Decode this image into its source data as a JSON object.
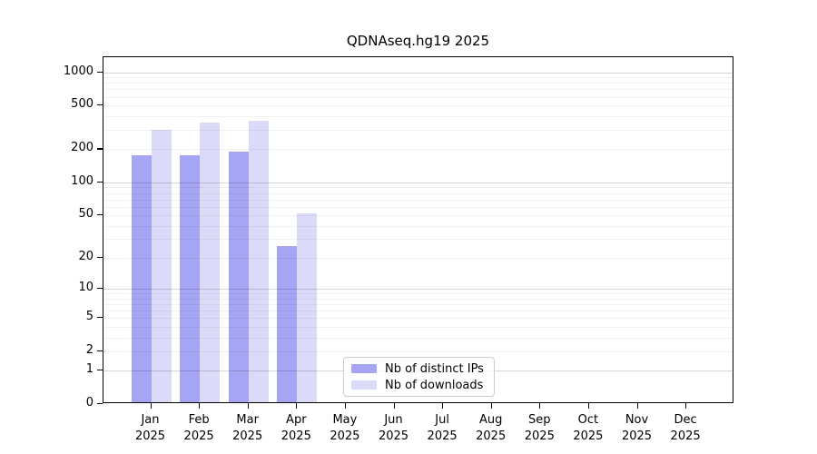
{
  "title": "QDNAseq.hg19 2025",
  "colors": {
    "distinct_ips": "#a5a5f3",
    "downloads": "#dbdbf9",
    "axis": "#000000",
    "legend_border": "#cccccc"
  },
  "legend": {
    "items": [
      {
        "label": "Nb of distinct IPs",
        "color": "#a5a5f3"
      },
      {
        "label": "Nb of downloads",
        "color": "#dbdbf9"
      }
    ]
  },
  "x_axis": {
    "months": [
      "Jan",
      "Feb",
      "Mar",
      "Apr",
      "May",
      "Jun",
      "Jul",
      "Aug",
      "Sep",
      "Oct",
      "Nov",
      "Dec"
    ],
    "year": "2025"
  },
  "y_axis": {
    "tick_labels": [
      "1000",
      "500",
      "200",
      "100",
      "50",
      "20",
      "10",
      "5",
      "2",
      "1",
      "0"
    ],
    "tick_values": [
      1000,
      500,
      200,
      100,
      50,
      20,
      10,
      5,
      2,
      1,
      0
    ],
    "minor_grid_values": [
      2,
      3,
      4,
      5,
      6,
      7,
      8,
      9,
      20,
      30,
      40,
      50,
      60,
      70,
      80,
      90,
      200,
      300,
      400,
      500,
      600,
      700,
      800,
      900
    ],
    "major_grid_values": [
      1,
      10,
      100,
      1000
    ]
  },
  "chart_data": {
    "type": "bar",
    "title": "QDNAseq.hg19 2025",
    "categories": [
      "Jan 2025",
      "Feb 2025",
      "Mar 2025",
      "Apr 2025",
      "May 2025",
      "Jun 2025",
      "Jul 2025",
      "Aug 2025",
      "Sep 2025",
      "Oct 2025",
      "Nov 2025",
      "Dec 2025"
    ],
    "series": [
      {
        "name": "Nb of distinct IPs",
        "color": "#a5a5f3",
        "values": [
          170,
          170,
          185,
          25,
          0,
          0,
          0,
          0,
          0,
          0,
          0,
          0
        ]
      },
      {
        "name": "Nb of downloads",
        "color": "#dbdbf9",
        "values": [
          290,
          340,
          350,
          50,
          0,
          0,
          0,
          0,
          0,
          0,
          0,
          0
        ]
      }
    ],
    "xlabel": "",
    "ylabel": "",
    "y_scale": "log1p",
    "y_ticks": [
      0,
      1,
      2,
      5,
      10,
      20,
      50,
      100,
      200,
      500,
      1000
    ],
    "ylim": [
      0,
      1370
    ],
    "grid": "on",
    "legend_position": "lower-center"
  }
}
